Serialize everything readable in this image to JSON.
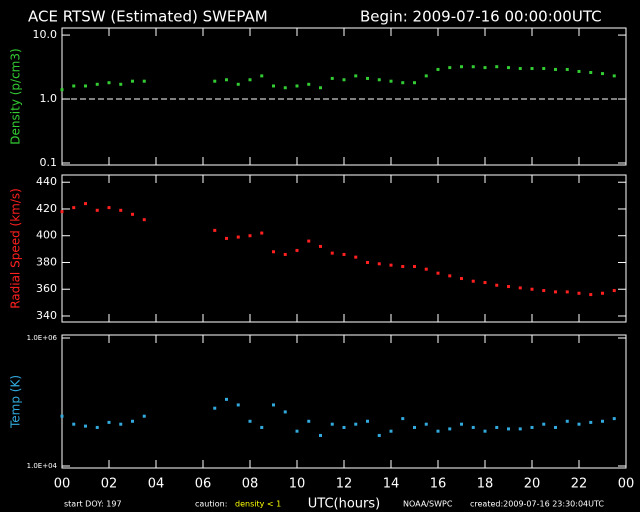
{
  "header": {
    "title": "ACE RTSW (Estimated) SWEPAM",
    "begin": "Begin: 2009-07-16 00:00:00UTC"
  },
  "footer": {
    "start": "start DOY: 197",
    "caution_label": "caution:",
    "caution_value": "density < 1",
    "source": "NOAA/SWPC",
    "created": "created:2009-07-16 23:30:04UTC"
  },
  "chart_data": [
    {
      "type": "scatter",
      "ylabel": "Density (p/cm3)",
      "log_y": true,
      "color": "#33cc33",
      "ylim": [
        0.093,
        12.9
      ],
      "yticks": [
        0.1,
        {
          "value": 1,
          "label": "1.0"
        },
        {
          "value": 10,
          "label": "10.0"
        }
      ],
      "reference_line": 1,
      "xlim": [
        0,
        24
      ],
      "x": [
        0,
        0.5,
        1,
        1.5,
        2,
        2.5,
        3,
        3.5,
        4,
        4.5,
        5,
        5.5,
        6,
        6.5,
        7,
        7.5,
        8,
        8.5,
        9,
        9.5,
        10,
        10.5,
        11,
        11.5,
        12,
        12.5,
        13,
        13.5,
        14,
        14.5,
        15,
        15.5,
        16,
        16.5,
        17,
        17.5,
        18,
        18.5,
        19,
        19.5,
        20,
        20.5,
        21,
        21.5,
        22,
        22.5,
        23,
        23.5
      ],
      "values": [
        1.4,
        1.6,
        1.6,
        1.7,
        1.8,
        1.7,
        1.9,
        1.9,
        null,
        null,
        null,
        null,
        null,
        1.9,
        2.0,
        1.7,
        2.0,
        2.3,
        1.6,
        1.5,
        1.6,
        1.7,
        1.5,
        2.1,
        2.0,
        2.3,
        2.1,
        2.0,
        1.9,
        1.8,
        1.8,
        2.3,
        2.9,
        3.1,
        3.2,
        3.2,
        3.1,
        3.2,
        3.1,
        3.0,
        3.0,
        3.0,
        2.9,
        2.9,
        2.7,
        2.6,
        2.5,
        2.3
      ]
    },
    {
      "type": "scatter",
      "ylabel": "Radial Speed (km/s)",
      "log_y": false,
      "color": "#ff2020",
      "ylim": [
        335.5,
        445.4
      ],
      "yticks": [
        340,
        360,
        380,
        400,
        420,
        440
      ],
      "xlim": [
        0,
        24
      ],
      "x": [
        0,
        0.5,
        1,
        1.5,
        2,
        2.5,
        3,
        3.5,
        4,
        4.5,
        5,
        5.5,
        6,
        6.5,
        7,
        7.5,
        8,
        8.5,
        9,
        9.5,
        10,
        10.5,
        11,
        11.5,
        12,
        12.5,
        13,
        13.5,
        14,
        14.5,
        15,
        15.5,
        16,
        16.5,
        17,
        17.5,
        18,
        18.5,
        19,
        19.5,
        20,
        20.5,
        21,
        21.5,
        22,
        22.5,
        23,
        23.5
      ],
      "values": [
        418,
        421,
        424,
        419,
        421,
        419,
        416,
        412,
        null,
        null,
        null,
        null,
        null,
        404,
        398,
        399,
        400,
        402,
        388,
        386,
        389,
        396,
        392,
        387,
        386,
        384,
        380,
        379,
        378,
        377,
        377,
        375,
        372,
        370,
        368,
        366,
        365,
        363,
        362,
        361,
        360,
        359,
        358,
        358,
        357,
        356,
        357,
        359
      ]
    },
    {
      "type": "scatter",
      "ylabel": "Temp (K)",
      "log_y": true,
      "color": "#33aadd",
      "ylim": [
        9306,
        1114000
      ],
      "yticks": [
        {
          "value": 10000,
          "label": "1.0E+04"
        },
        {
          "value": 1000000,
          "label": "1.0E+06"
        }
      ],
      "xlim": [
        0,
        24
      ],
      "xlabel": "UTC(hours)",
      "xticks": [
        {
          "value": 0,
          "label": "00"
        },
        {
          "value": 2,
          "label": "02"
        },
        {
          "value": 4,
          "label": "04"
        },
        {
          "value": 6,
          "label": "06"
        },
        {
          "value": 8,
          "label": "08"
        },
        10,
        12,
        14,
        16,
        18,
        20,
        22,
        {
          "value": 24,
          "label": "00"
        }
      ],
      "x": [
        0,
        0.5,
        1,
        1.5,
        2,
        2.5,
        3,
        3.5,
        4,
        4.5,
        5,
        5.5,
        6,
        6.5,
        7,
        7.5,
        8,
        8.5,
        9,
        9.5,
        10,
        10.5,
        11,
        11.5,
        12,
        12.5,
        13,
        13.5,
        14,
        14.5,
        15,
        15.5,
        16,
        16.5,
        17,
        17.5,
        18,
        18.5,
        19,
        19.5,
        20,
        20.5,
        21,
        21.5,
        22,
        22.5,
        23,
        23.5
      ],
      "values": [
        60000,
        45000,
        42000,
        40000,
        48000,
        45000,
        50000,
        60000,
        null,
        null,
        null,
        null,
        null,
        80000,
        110000,
        90000,
        50000,
        40000,
        90000,
        70000,
        35000,
        50000,
        30000,
        45000,
        40000,
        45000,
        50000,
        30000,
        35000,
        55000,
        40000,
        45000,
        35000,
        38000,
        45000,
        40000,
        35000,
        40000,
        38000,
        38000,
        40000,
        45000,
        40000,
        50000,
        45000,
        48000,
        50000,
        55000
      ]
    }
  ]
}
